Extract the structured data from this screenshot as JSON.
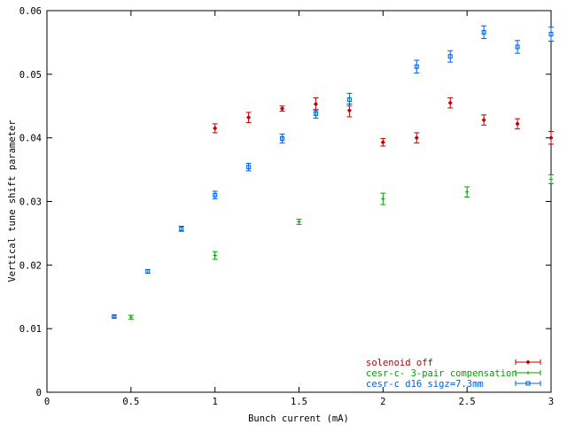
{
  "chart_data": {
    "type": "scatter",
    "title": "",
    "xlabel": "Bunch current (mA)",
    "ylabel": "Vertical tune shift parameter",
    "xlim": [
      0,
      3
    ],
    "ylim": [
      0,
      0.06
    ],
    "xticks": [
      "0",
      "0.5",
      "1",
      "1.5",
      "2",
      "2.5",
      "3"
    ],
    "yticks": [
      "0",
      "0.01",
      "0.02",
      "0.03",
      "0.04",
      "0.05",
      "0.06"
    ],
    "grid": false,
    "legend_position": "bottom-right",
    "error_bars": true,
    "series": [
      {
        "name": "solenoid off",
        "color": "#c00000",
        "marker": "diamond",
        "x": [
          1.0,
          1.2,
          1.4,
          1.6,
          1.8,
          2.0,
          2.2,
          2.4,
          2.6,
          2.8,
          3.0
        ],
        "y": [
          0.0415,
          0.0432,
          0.0446,
          0.0453,
          0.0443,
          0.0393,
          0.04,
          0.0455,
          0.0428,
          0.0422,
          0.04
        ],
        "err": [
          0.0007,
          0.0008,
          0.0004,
          0.001,
          0.001,
          0.0006,
          0.0008,
          0.0008,
          0.0008,
          0.0008,
          0.001
        ]
      },
      {
        "name": "cesr-c- 3-pair compensation",
        "color": "#00a000",
        "marker": "plus",
        "x": [
          0.5,
          1.0,
          1.5,
          2.0,
          2.5,
          3.0
        ],
        "y": [
          0.0118,
          0.0215,
          0.0268,
          0.0304,
          0.0315,
          0.0335
        ],
        "err": [
          0.0003,
          0.0006,
          0.0004,
          0.0009,
          0.0008,
          0.0007
        ]
      },
      {
        "name": "cesr-c d16 sigz=7.3mm",
        "color": "#0060e0",
        "marker": "square",
        "x": [
          0.4,
          0.6,
          0.8,
          1.0,
          1.2,
          1.4,
          1.6,
          1.8,
          2.2,
          2.4,
          2.6,
          2.8,
          3.0
        ],
        "y": [
          0.0119,
          0.019,
          0.0257,
          0.031,
          0.0354,
          0.0399,
          0.0438,
          0.046,
          0.0512,
          0.0528,
          0.0566,
          0.0543,
          0.0563
        ],
        "err": [
          0.0002,
          0.0003,
          0.0004,
          0.0006,
          0.0006,
          0.0007,
          0.0007,
          0.001,
          0.001,
          0.0009,
          0.001,
          0.001,
          0.0011
        ]
      }
    ]
  }
}
